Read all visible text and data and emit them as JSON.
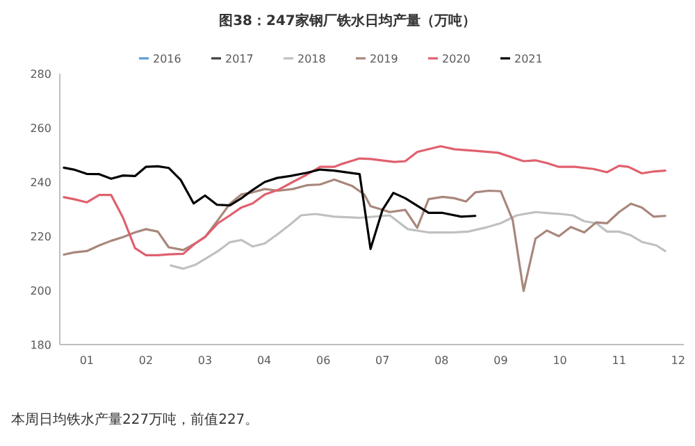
{
  "chart_data": {
    "type": "line",
    "title": "图38：247家钢厂铁水日均产量（万吨）",
    "annotations": [
      "本周日均铁水产量227万吨，前值227。"
    ],
    "xlim": [
      0.48,
      12.51
    ],
    "ylim": [
      180,
      280
    ],
    "xticks": [
      {
        "value": 1,
        "label": "01"
      },
      {
        "value": 2.14,
        "label": "02"
      },
      {
        "value": 3.28,
        "label": "03"
      },
      {
        "value": 4.42,
        "label": "04"
      },
      {
        "value": 5.56,
        "label": "06"
      },
      {
        "value": 6.7,
        "label": "07"
      },
      {
        "value": 7.84,
        "label": "08"
      },
      {
        "value": 8.98,
        "label": "09"
      },
      {
        "value": 10.12,
        "label": "10"
      },
      {
        "value": 11.26,
        "label": "11"
      },
      {
        "value": 12.4,
        "label": "12"
      }
    ],
    "yticks": [
      180,
      200,
      220,
      240,
      260,
      280
    ],
    "grid": false,
    "legend": "top",
    "marker": "none",
    "line_style": "solid",
    "series": [
      {
        "name": "2016",
        "color": "#5b9bd5"
      },
      {
        "name": "2017",
        "color": "#404040"
      },
      {
        "name": "2018",
        "color": "#c0c0c0",
        "x": [
          2.62,
          2.86,
          3.09,
          3.3,
          3.53,
          3.76,
          3.98,
          4.2,
          4.43,
          4.69,
          4.92,
          5.13,
          5.41,
          5.77,
          6.26,
          6.84,
          7.19,
          7.59,
          8.05,
          8.35,
          8.67,
          8.98,
          9.29,
          9.65,
          9.91,
          10.14,
          10.37,
          10.59,
          10.82,
          11.03,
          11.26,
          11.49,
          11.7,
          11.98,
          12.15
        ],
        "values": [
          209.2,
          208,
          209.4,
          211.8,
          214.5,
          217.8,
          218.6,
          216.2,
          217.3,
          220.9,
          224.3,
          227.7,
          228.2,
          227.2,
          226.8,
          227.7,
          222.6,
          221.4,
          221.4,
          221.7,
          223.1,
          224.8,
          227.7,
          228.9,
          228.5,
          228.2,
          227.7,
          225.5,
          224.8,
          221.7,
          221.7,
          220.3,
          217.9,
          216.6,
          214.5
        ]
      },
      {
        "name": "2019",
        "color": "#a8877c",
        "x": [
          0.56,
          0.75,
          1.0,
          1.24,
          1.47,
          1.7,
          1.93,
          2.14,
          2.37,
          2.58,
          2.86,
          3.09,
          3.28,
          3.53,
          3.76,
          3.98,
          4.2,
          4.43,
          4.69,
          4.97,
          5.24,
          5.5,
          5.77,
          6.12,
          6.35,
          6.47,
          6.84,
          7.14,
          7.37,
          7.59,
          7.86,
          8.09,
          8.31,
          8.49,
          8.75,
          8.98,
          9.21,
          9.42,
          9.65,
          9.87,
          10.1,
          10.33,
          10.59,
          10.82,
          11.03,
          11.26,
          11.49,
          11.7,
          11.93,
          12.15
        ],
        "values": [
          213.2,
          214,
          214.5,
          216.6,
          218.3,
          219.7,
          221.4,
          222.6,
          221.7,
          215.9,
          214.9,
          217.3,
          219.7,
          226,
          232,
          235.4,
          236.2,
          237.4,
          236.8,
          237.4,
          238.8,
          239.1,
          240.9,
          238.5,
          235.4,
          231.1,
          228.9,
          229.7,
          223.1,
          233.7,
          234.5,
          234,
          232.8,
          236.2,
          236.8,
          236.6,
          226,
          199.8,
          219.1,
          222.1,
          220,
          223.4,
          221.4,
          225.1,
          224.8,
          228.9,
          232,
          230.6,
          227.2,
          227.5
        ]
      },
      {
        "name": "2020",
        "color": "#e0606e",
        "x": [
          0.56,
          0.75,
          1.0,
          1.24,
          1.47,
          1.7,
          1.93,
          2.14,
          2.37,
          2.58,
          2.86,
          3.09,
          3.28,
          3.53,
          3.76,
          3.98,
          4.2,
          4.43,
          4.69,
          4.97,
          5.24,
          5.5,
          5.77,
          5.89,
          6.26,
          6.47,
          6.93,
          7.14,
          7.37,
          7.82,
          8.09,
          8.49,
          8.93,
          9.42,
          9.65,
          9.87,
          10.1,
          10.41,
          10.77,
          11.03,
          11.26,
          11.44,
          11.7,
          11.93,
          12.15
        ],
        "values": [
          234.4,
          233.7,
          232.5,
          235.2,
          235.2,
          226.8,
          215.6,
          213,
          213,
          213.3,
          213.5,
          217.3,
          219.7,
          224.8,
          227.7,
          230.6,
          232.1,
          235.4,
          237.1,
          240,
          242.7,
          245.6,
          245.6,
          246.5,
          248.7,
          248.5,
          247.4,
          247.7,
          251.1,
          253.2,
          252.1,
          251.5,
          250.8,
          247.7,
          248,
          247,
          245.6,
          245.6,
          244.8,
          243.6,
          246,
          245.6,
          243.2,
          243.9,
          244.2
        ]
      },
      {
        "name": "2021",
        "color": "#000000",
        "x": [
          0.56,
          0.75,
          1.0,
          1.24,
          1.47,
          1.7,
          1.93,
          2.14,
          2.37,
          2.58,
          2.81,
          3.06,
          3.28,
          3.51,
          3.76,
          3.98,
          4.2,
          4.43,
          4.67,
          4.92,
          5.24,
          5.5,
          5.77,
          6.26,
          6.47,
          6.7,
          6.91,
          7.14,
          7.59,
          7.86,
          8.22,
          8.49
        ],
        "values": [
          245.3,
          244.6,
          243,
          242.9,
          241.2,
          242.4,
          242.2,
          245.6,
          245.8,
          245.2,
          240.8,
          232.1,
          235,
          231.6,
          231.4,
          234,
          237.1,
          240,
          241.5,
          242.2,
          243.4,
          244.6,
          244.2,
          242.9,
          215.3,
          229.7,
          236,
          234,
          228.6,
          228.6,
          227.2,
          227.5
        ]
      }
    ]
  }
}
